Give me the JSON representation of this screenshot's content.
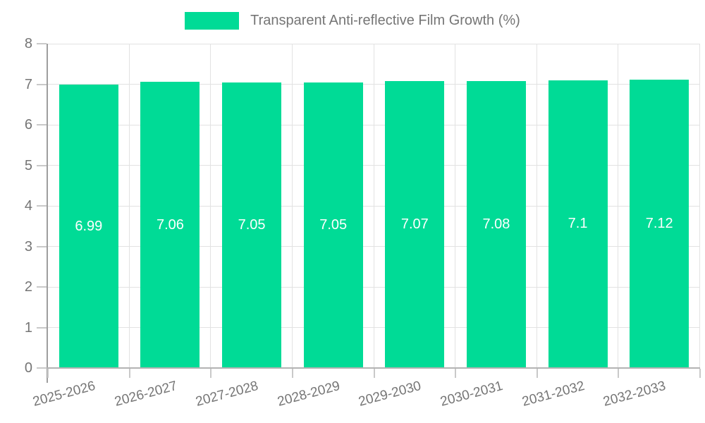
{
  "legend": {
    "label": "Transparent Anti-reflective Film Growth (%)"
  },
  "colors": {
    "accent": "#00DB96",
    "axis_text": "#757575",
    "bar_label": "#ffffff",
    "gridline": "#e2e2e2"
  },
  "chart_data": {
    "type": "bar",
    "title": "Transparent Anti-reflective Film Growth (%)",
    "categories": [
      "2025-2026",
      "2026-2027",
      "2027-2028",
      "2028-2029",
      "2029-2030",
      "2030-2031",
      "2031-2032",
      "2032-2033"
    ],
    "series": [
      {
        "name": "Transparent Anti-reflective Film Growth (%)",
        "values": [
          6.99,
          7.06,
          7.05,
          7.05,
          7.07,
          7.08,
          7.1,
          7.12
        ],
        "color": "#00DB96"
      }
    ],
    "data_labels": [
      "6.99",
      "7.06",
      "7.05",
      "7.05",
      "7.07",
      "7.08",
      "7.1",
      "7.12"
    ],
    "xlabel": "",
    "ylabel": "",
    "ylim": [
      0,
      8
    ],
    "yticks": [
      0,
      1,
      2,
      3,
      4,
      5,
      6,
      7,
      8
    ],
    "grid": true,
    "legend_position": "top",
    "x_label_rotation_deg": -15,
    "data_label_position": "middle-of-bar"
  }
}
